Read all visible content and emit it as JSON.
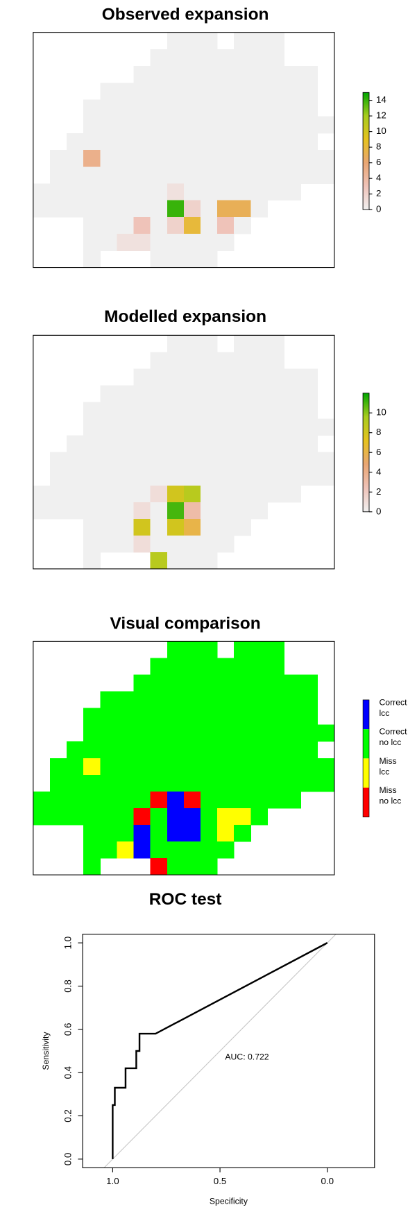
{
  "chart_data": [
    {
      "type": "heatmap",
      "title": "Observed expansion",
      "values": [
        [
          null,
          null,
          null,
          null,
          null,
          null,
          null,
          null,
          0,
          0,
          0,
          null,
          0,
          0,
          0,
          null,
          null,
          null
        ],
        [
          null,
          null,
          null,
          null,
          null,
          null,
          null,
          0,
          0,
          0,
          0,
          0,
          0,
          0,
          0,
          null,
          null,
          null
        ],
        [
          null,
          null,
          null,
          null,
          null,
          null,
          0,
          0,
          0,
          0,
          0,
          0,
          0,
          0,
          0,
          0,
          0,
          null
        ],
        [
          null,
          null,
          null,
          null,
          0,
          0,
          0,
          0,
          0,
          0,
          0,
          0,
          0,
          0,
          0,
          0,
          0,
          null
        ],
        [
          null,
          null,
          null,
          0,
          0,
          0,
          0,
          0,
          0,
          0,
          0,
          0,
          0,
          0,
          0,
          0,
          0,
          null
        ],
        [
          null,
          null,
          null,
          0,
          0,
          0,
          0,
          0,
          0,
          0,
          0,
          0,
          0,
          0,
          0,
          0,
          0,
          0
        ],
        [
          null,
          null,
          0,
          0,
          0,
          0,
          0,
          0,
          0,
          0,
          0,
          0,
          0,
          0,
          0,
          0,
          0,
          null
        ],
        [
          null,
          0,
          0,
          5,
          0,
          0,
          0,
          0,
          0,
          0,
          0,
          0,
          0,
          0,
          0,
          0,
          0,
          0
        ],
        [
          null,
          0,
          0,
          0,
          0,
          0,
          0,
          0,
          0,
          0,
          0,
          0,
          0,
          0,
          0,
          0,
          0,
          0
        ],
        [
          0,
          0,
          0,
          0,
          0,
          0,
          0,
          0,
          1,
          0,
          0,
          0,
          0,
          0,
          0,
          0,
          null,
          null
        ],
        [
          0,
          0,
          0,
          0,
          0,
          0,
          0,
          0,
          14,
          2,
          0,
          7,
          7,
          0,
          null,
          null,
          null,
          null
        ],
        [
          null,
          null,
          null,
          0,
          0,
          0,
          3,
          0,
          2,
          8,
          0,
          3,
          0,
          null,
          null,
          null,
          null,
          null
        ],
        [
          null,
          null,
          null,
          0,
          0,
          1,
          1,
          0,
          0,
          0,
          0,
          0,
          null,
          null,
          null,
          null,
          null,
          null
        ],
        [
          null,
          null,
          null,
          0,
          null,
          null,
          null,
          0,
          0,
          0,
          0,
          null,
          null,
          null,
          null,
          null,
          null,
          null
        ]
      ],
      "zlim": [
        0,
        15
      ],
      "zticks": [
        0,
        2,
        4,
        6,
        8,
        10,
        12,
        14
      ],
      "colors": [
        "#f0f0f0",
        "#efc3b9",
        "#e9a674",
        "#e6c21e",
        "#a8cc1e",
        "#00a600"
      ]
    },
    {
      "type": "heatmap",
      "title": "Modelled expansion",
      "values": [
        [
          null,
          null,
          null,
          null,
          null,
          null,
          null,
          null,
          0,
          0,
          0,
          null,
          0,
          0,
          0,
          null,
          null,
          null
        ],
        [
          null,
          null,
          null,
          null,
          null,
          null,
          null,
          0,
          0,
          0,
          0,
          0,
          0,
          0,
          0,
          null,
          null,
          null
        ],
        [
          null,
          null,
          null,
          null,
          null,
          null,
          0,
          0,
          0,
          0,
          0,
          0,
          0,
          0,
          0,
          0,
          0,
          null
        ],
        [
          null,
          null,
          null,
          null,
          0,
          0,
          0,
          0,
          0,
          0,
          0,
          0,
          0,
          0,
          0,
          0,
          0,
          null
        ],
        [
          null,
          null,
          null,
          0,
          0,
          0,
          0,
          0,
          0,
          0,
          0,
          0,
          0,
          0,
          0,
          0,
          0,
          null
        ],
        [
          null,
          null,
          null,
          0,
          0,
          0,
          0,
          0,
          0,
          0,
          0,
          0,
          0,
          0,
          0,
          0,
          0,
          0
        ],
        [
          null,
          null,
          0,
          0,
          0,
          0,
          0,
          0,
          0,
          0,
          0,
          0,
          0,
          0,
          0,
          0,
          0,
          null
        ],
        [
          null,
          0,
          0,
          0,
          0,
          0,
          0,
          0,
          0,
          0,
          0,
          0,
          0,
          0,
          0,
          0,
          0,
          0
        ],
        [
          null,
          0,
          0,
          0,
          0,
          0,
          0,
          0,
          0,
          0,
          0,
          0,
          0,
          0,
          0,
          0,
          0,
          0
        ],
        [
          0,
          0,
          0,
          0,
          0,
          0,
          0,
          1,
          8,
          9,
          0,
          0,
          0,
          0,
          0,
          0,
          null,
          null
        ],
        [
          0,
          0,
          0,
          0,
          0,
          0,
          1,
          0,
          11,
          3,
          0,
          0,
          0,
          0,
          null,
          null,
          null,
          null
        ],
        [
          null,
          null,
          null,
          0,
          0,
          0,
          8,
          0,
          8,
          6,
          0,
          0,
          0,
          null,
          null,
          null,
          null,
          null
        ],
        [
          null,
          null,
          null,
          0,
          0,
          0,
          1,
          0,
          0,
          0,
          0,
          0,
          null,
          null,
          null,
          null,
          null,
          null
        ],
        [
          null,
          null,
          null,
          0,
          null,
          null,
          null,
          9,
          0,
          0,
          0,
          null,
          null,
          null,
          null,
          null,
          null,
          null
        ]
      ],
      "zlim": [
        0,
        12
      ],
      "zticks": [
        0,
        2,
        4,
        6,
        8,
        10
      ],
      "colors": [
        "#f0f0f0",
        "#efc3b9",
        "#e9a674",
        "#e6c21e",
        "#a8cc1e",
        "#00a600"
      ]
    },
    {
      "type": "categorical-map",
      "title": "Visual comparison",
      "values": [
        [
          null,
          null,
          null,
          null,
          null,
          null,
          null,
          null,
          1,
          1,
          1,
          null,
          1,
          1,
          1,
          null,
          null,
          null
        ],
        [
          null,
          null,
          null,
          null,
          null,
          null,
          null,
          1,
          1,
          1,
          1,
          1,
          1,
          1,
          1,
          null,
          null,
          null
        ],
        [
          null,
          null,
          null,
          null,
          null,
          null,
          1,
          1,
          1,
          1,
          1,
          1,
          1,
          1,
          1,
          1,
          1,
          null
        ],
        [
          null,
          null,
          null,
          null,
          1,
          1,
          1,
          1,
          1,
          1,
          1,
          1,
          1,
          1,
          1,
          1,
          1,
          null
        ],
        [
          null,
          null,
          null,
          1,
          1,
          1,
          1,
          1,
          1,
          1,
          1,
          1,
          1,
          1,
          1,
          1,
          1,
          null
        ],
        [
          null,
          null,
          null,
          1,
          1,
          1,
          1,
          1,
          1,
          1,
          1,
          1,
          1,
          1,
          1,
          1,
          1,
          1
        ],
        [
          null,
          null,
          1,
          1,
          1,
          1,
          1,
          1,
          1,
          1,
          1,
          1,
          1,
          1,
          1,
          1,
          1,
          null
        ],
        [
          null,
          1,
          1,
          2,
          1,
          1,
          1,
          1,
          1,
          1,
          1,
          1,
          1,
          1,
          1,
          1,
          1,
          1
        ],
        [
          null,
          1,
          1,
          1,
          1,
          1,
          1,
          1,
          1,
          1,
          1,
          1,
          1,
          1,
          1,
          1,
          1,
          1
        ],
        [
          1,
          1,
          1,
          1,
          1,
          1,
          1,
          3,
          0,
          3,
          1,
          1,
          1,
          1,
          1,
          1,
          null,
          null
        ],
        [
          1,
          1,
          1,
          1,
          1,
          1,
          3,
          1,
          0,
          0,
          1,
          2,
          2,
          1,
          null,
          null,
          null,
          null
        ],
        [
          null,
          null,
          null,
          1,
          1,
          1,
          0,
          1,
          0,
          0,
          1,
          2,
          1,
          null,
          null,
          null,
          null,
          null
        ],
        [
          null,
          null,
          null,
          1,
          1,
          2,
          0,
          1,
          1,
          1,
          1,
          1,
          null,
          null,
          null,
          null,
          null,
          null
        ],
        [
          null,
          null,
          null,
          1,
          null,
          null,
          null,
          3,
          1,
          1,
          1,
          null,
          null,
          null,
          null,
          null,
          null,
          null
        ]
      ],
      "legend": [
        {
          "label": [
            "Correct",
            "lcc"
          ],
          "color": "#0000ff"
        },
        {
          "label": [
            "Correct",
            "no lcc"
          ],
          "color": "#00ff00"
        },
        {
          "label": [
            "Miss",
            "lcc"
          ],
          "color": "#ffff00"
        },
        {
          "label": [
            "Miss",
            "no lcc"
          ],
          "color": "#ff0000"
        }
      ]
    },
    {
      "type": "line",
      "title": "ROC test",
      "xlabel": "Specificity",
      "ylabel": "Sensitivity",
      "x": [
        1,
        1,
        0.99,
        0.99,
        0.94,
        0.94,
        0.89,
        0.89,
        0.875,
        0.875,
        0.8,
        0
      ],
      "series": [
        {
          "color": "#000000",
          "values": [
            0,
            0.25,
            0.25,
            0.33,
            0.33,
            0.42,
            0.42,
            0.5,
            0.5,
            0.58,
            0.58,
            1
          ]
        }
      ],
      "reference_line": {
        "x": [
          1,
          0
        ],
        "y": [
          0,
          1
        ],
        "color": "#c8c8c8"
      },
      "annotation": "AUC: 0.722",
      "xlim": [
        1.14,
        -0.22
      ],
      "ylim": [
        -0.04,
        1.04
      ],
      "xticks": [
        {
          "value": 1,
          "label": "1.0"
        },
        {
          "value": 0.5,
          "label": "0.5"
        },
        {
          "value": 0,
          "label": "0.0"
        }
      ],
      "yticks": [
        {
          "value": 0,
          "label": "0.0"
        },
        {
          "value": 0.2,
          "label": "0.2"
        },
        {
          "value": 0.4,
          "label": "0.4"
        },
        {
          "value": 0.6,
          "label": "0.6"
        },
        {
          "value": 0.8,
          "label": "0.8"
        },
        {
          "value": 1,
          "label": "1.0"
        }
      ]
    }
  ]
}
